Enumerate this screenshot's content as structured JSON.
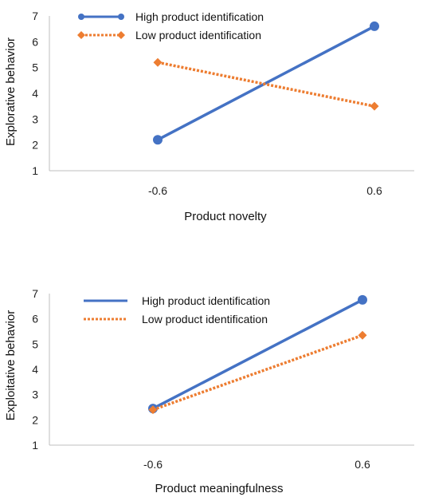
{
  "chart_data": [
    {
      "type": "line",
      "title": "",
      "xlabel": "Product novelty",
      "ylabel": "Explorative behavior",
      "categories": [
        "-0.6",
        "0.6"
      ],
      "ylim": [
        1,
        7
      ],
      "yticks": [
        1,
        2,
        3,
        4,
        5,
        6,
        7
      ],
      "grid": false,
      "legend": "top-left",
      "series": [
        {
          "name": "High product identification",
          "values": [
            2.2,
            6.6
          ],
          "color": "#4472C4",
          "style": "solid",
          "marker": "circle"
        },
        {
          "name": "Low product identification",
          "values": [
            5.2,
            3.5
          ],
          "color": "#ED7D31",
          "style": "dotted",
          "marker": "diamond"
        }
      ]
    },
    {
      "type": "line",
      "title": "",
      "xlabel": "Product meaningfulness",
      "ylabel": "Exploitative behavior",
      "categories": [
        "-0.6",
        "0.6"
      ],
      "ylim": [
        1,
        7
      ],
      "yticks": [
        1,
        2,
        3,
        4,
        5,
        6,
        7
      ],
      "grid": false,
      "legend": "top-left",
      "series": [
        {
          "name": "High product identification",
          "values": [
            2.45,
            6.75
          ],
          "color": "#4472C4",
          "style": "solid",
          "marker": "circle"
        },
        {
          "name": "Low product identification",
          "values": [
            2.4,
            5.35
          ],
          "color": "#ED7D31",
          "style": "dotted",
          "marker": "diamond"
        }
      ]
    }
  ]
}
